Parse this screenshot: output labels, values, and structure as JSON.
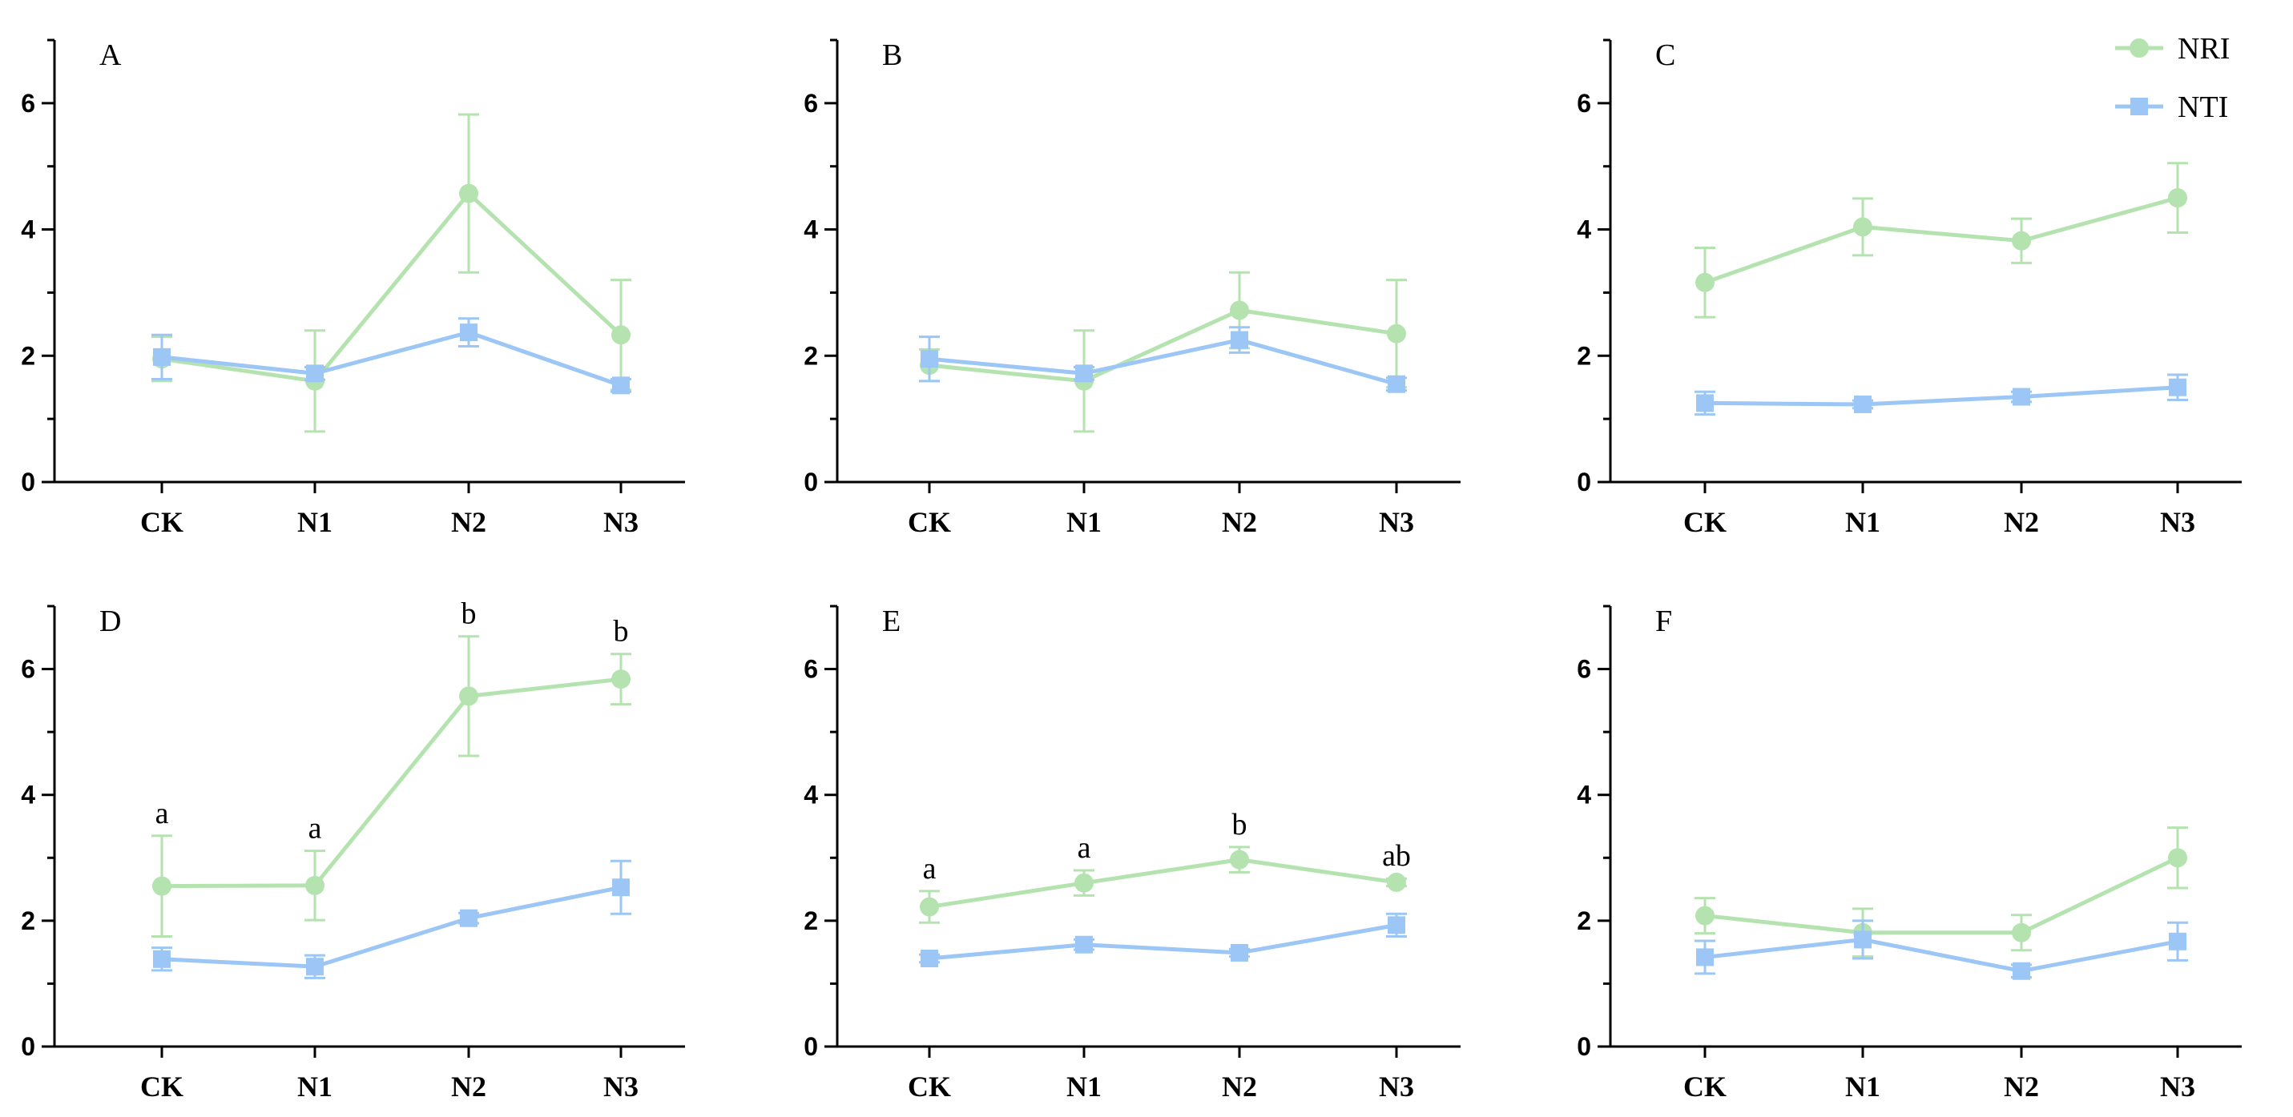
{
  "chart_data": {
    "type": "line",
    "categories": [
      "CK",
      "N1",
      "N2",
      "N3"
    ],
    "ylim": [
      0,
      7
    ],
    "yticks": [
      0,
      2,
      4,
      6
    ],
    "colors": {
      "NRI": "#b5e3b0",
      "NTI": "#9cc6f5"
    },
    "legend": {
      "position": "top-right",
      "items": [
        {
          "name": "NRI",
          "marker": "circle"
        },
        {
          "name": "NTI",
          "marker": "square"
        }
      ]
    },
    "panels": [
      {
        "label": "A",
        "series": [
          {
            "name": "NRI",
            "values": [
              1.95,
              1.6,
              4.57,
              2.33
            ],
            "errors": [
              0.35,
              0.8,
              1.25,
              0.87
            ]
          },
          {
            "name": "NTI",
            "values": [
              1.98,
              1.72,
              2.37,
              1.53
            ],
            "errors": [
              0.35,
              0.1,
              0.22,
              0.1
            ]
          }
        ],
        "significance": []
      },
      {
        "label": "B",
        "series": [
          {
            "name": "NRI",
            "values": [
              1.85,
              1.6,
              2.72,
              2.35
            ],
            "errors": [
              0.25,
              0.8,
              0.6,
              0.85
            ]
          },
          {
            "name": "NTI",
            "values": [
              1.95,
              1.72,
              2.25,
              1.55
            ],
            "errors": [
              0.35,
              0.1,
              0.2,
              0.1
            ]
          }
        ],
        "significance": []
      },
      {
        "label": "C",
        "series": [
          {
            "name": "NRI",
            "values": [
              3.16,
              4.04,
              3.82,
              4.5
            ],
            "errors": [
              0.55,
              0.45,
              0.35,
              0.55
            ]
          },
          {
            "name": "NTI",
            "values": [
              1.25,
              1.23,
              1.35,
              1.5
            ],
            "errors": [
              0.18,
              0.06,
              0.08,
              0.2
            ]
          }
        ],
        "significance": []
      },
      {
        "label": "D",
        "series": [
          {
            "name": "NRI",
            "values": [
              2.55,
              2.56,
              5.57,
              5.84
            ],
            "errors": [
              0.8,
              0.55,
              0.95,
              0.4
            ]
          },
          {
            "name": "NTI",
            "values": [
              1.39,
              1.27,
              2.04,
              2.53
            ],
            "errors": [
              0.18,
              0.18,
              0.08,
              0.42
            ]
          }
        ],
        "significance": [
          "a",
          "a",
          "b",
          "b"
        ]
      },
      {
        "label": "E",
        "series": [
          {
            "name": "NRI",
            "values": [
              2.22,
              2.6,
              2.97,
              2.61
            ],
            "errors": [
              0.25,
              0.2,
              0.2,
              0.06
            ]
          },
          {
            "name": "NTI",
            "values": [
              1.4,
              1.62,
              1.49,
              1.93
            ],
            "errors": [
              0.06,
              0.08,
              0.06,
              0.18
            ]
          }
        ],
        "significance": [
          "a",
          "a",
          "b",
          "ab"
        ]
      },
      {
        "label": "F",
        "series": [
          {
            "name": "NRI",
            "values": [
              2.08,
              1.81,
              1.81,
              3.0
            ],
            "errors": [
              0.28,
              0.38,
              0.28,
              0.48
            ]
          },
          {
            "name": "NTI",
            "values": [
              1.42,
              1.7,
              1.2,
              1.67
            ],
            "errors": [
              0.26,
              0.3,
              0.1,
              0.3
            ]
          }
        ],
        "significance": []
      }
    ]
  }
}
